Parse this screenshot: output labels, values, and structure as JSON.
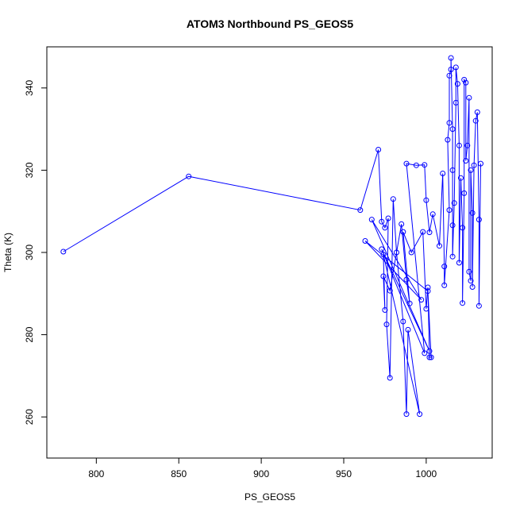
{
  "chart_data": {
    "type": "line",
    "title": "ATOM3 Northbound PS_GEOS5",
    "xlabel": "PS_GEOS5",
    "ylabel": "Theta (K)",
    "xlim": [
      770,
      1040
    ],
    "ylim": [
      250,
      350
    ],
    "xticks": [
      800,
      850,
      900,
      950,
      1000
    ],
    "yticks": [
      260,
      280,
      300,
      320,
      340
    ],
    "grid": false,
    "legend": "none",
    "series": [
      {
        "color": "#0000ff",
        "marker": "open-circle",
        "points": [
          [
            780,
            300.2
          ],
          [
            856,
            318.5
          ],
          [
            960,
            310.3
          ],
          [
            971,
            325.0
          ],
          [
            973,
            307.5
          ],
          [
            975,
            306.0
          ],
          [
            977,
            308.3
          ],
          [
            976,
            282.5
          ],
          [
            978,
            269.5
          ],
          [
            980,
            313.0
          ],
          [
            982,
            300.0
          ],
          [
            986,
            283.2
          ],
          [
            988,
            260.7
          ],
          [
            989,
            281.2
          ],
          [
            996,
            260.7
          ],
          [
            974,
            299.5
          ],
          [
            975,
            286.0
          ],
          [
            974,
            294.2
          ],
          [
            978,
            290.7
          ],
          [
            985,
            306.9
          ],
          [
            988,
            293.4
          ],
          [
            990,
            287.6
          ],
          [
            986,
            305.0
          ],
          [
            991,
            300.0
          ],
          [
            998,
            305.0
          ],
          [
            1000,
            286.3
          ],
          [
            1001,
            291.5
          ],
          [
            1002,
            274.5
          ],
          [
            1003,
            274.5
          ],
          [
            1001,
            290.6
          ],
          [
            963,
            302.8
          ],
          [
            997,
            288.5
          ],
          [
            967,
            308.0
          ],
          [
            1002,
            276.0
          ],
          [
            973,
            300.8
          ],
          [
            999,
            275.5
          ],
          [
            988,
            321.6
          ],
          [
            994,
            321.2
          ],
          [
            999,
            321.3
          ],
          [
            1000,
            312.7
          ],
          [
            1002,
            304.9
          ],
          [
            1004,
            309.3
          ],
          [
            1008,
            301.6
          ],
          [
            1010,
            319.2
          ],
          [
            1011,
            296.6
          ],
          [
            1011,
            292.0
          ],
          [
            1014,
            310.3
          ],
          [
            1013,
            327.4
          ],
          [
            1014,
            331.5
          ],
          [
            1014,
            343.0
          ],
          [
            1015,
            344.5
          ],
          [
            1015,
            347.3
          ],
          [
            1016,
            330.0
          ],
          [
            1016,
            320.0
          ],
          [
            1016,
            306.6
          ],
          [
            1016,
            299.0
          ],
          [
            1017,
            312.0
          ],
          [
            1018,
            336.4
          ],
          [
            1018,
            345.0
          ],
          [
            1019,
            341.0
          ],
          [
            1020,
            326.0
          ],
          [
            1020,
            297.5
          ],
          [
            1021,
            318.1
          ],
          [
            1022,
            306.0
          ],
          [
            1022,
            287.7
          ],
          [
            1023,
            314.4
          ],
          [
            1023,
            342.0
          ],
          [
            1024,
            341.3
          ],
          [
            1024,
            322.3
          ],
          [
            1025,
            326.0
          ],
          [
            1026,
            337.6
          ],
          [
            1026,
            295.3
          ],
          [
            1027,
            293.1
          ],
          [
            1027,
            320.0
          ],
          [
            1028,
            309.6
          ],
          [
            1028,
            291.6
          ],
          [
            1029,
            321.2
          ],
          [
            1030,
            332.0
          ],
          [
            1031,
            334.1
          ],
          [
            1032,
            308.0
          ],
          [
            1032,
            287.0
          ],
          [
            1033,
            321.6
          ]
        ]
      }
    ]
  }
}
